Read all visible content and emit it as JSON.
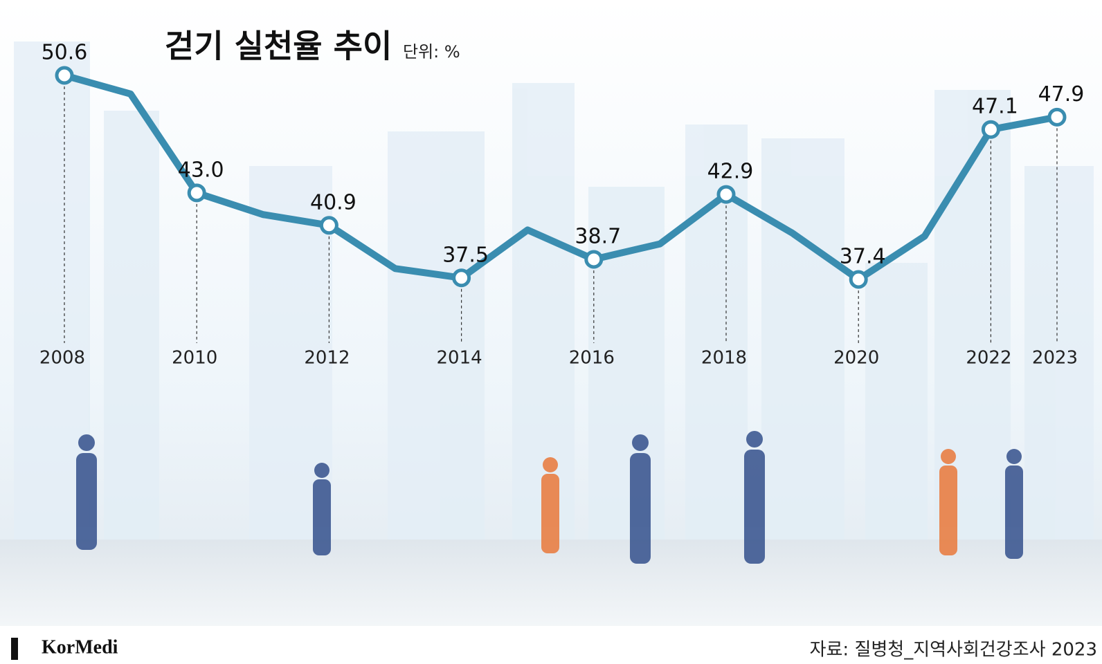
{
  "chart_data": {
    "type": "line",
    "title": "걷기 실천율 추이",
    "unit": "단위: %",
    "source": "자료: 질병청_지역사회건강조사 2023",
    "logo": "KorMedi",
    "categories": [
      "2008",
      null,
      "2010",
      null,
      "2012",
      null,
      "2014",
      null,
      "2016",
      null,
      "2018",
      null,
      "2020",
      null,
      "2022",
      "2023"
    ],
    "values": [
      50.6,
      49.4,
      43.0,
      41.6,
      40.9,
      38.1,
      37.5,
      40.6,
      38.7,
      39.7,
      42.9,
      40.4,
      37.4,
      40.2,
      47.1,
      47.9
    ],
    "value_labels": [
      "50.6",
      null,
      "43.0",
      null,
      "40.9",
      null,
      "37.5",
      null,
      "38.7",
      null,
      "42.9",
      null,
      "37.4",
      null,
      "47.1",
      "47.9"
    ],
    "color": "#3a8db0"
  }
}
